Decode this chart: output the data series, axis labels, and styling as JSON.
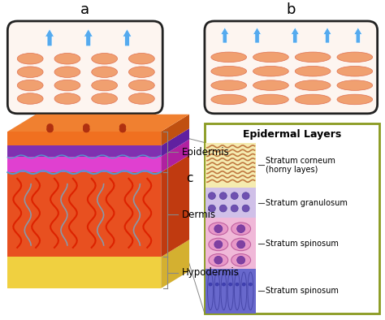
{
  "title_a": "a",
  "title_b": "b",
  "title_c": "c",
  "epidermal_title": "Epidermal Layers",
  "labels_3d": [
    "Epidermis",
    "Dermis",
    "Hypodermis"
  ],
  "epidermal_layers": [
    {
      "name": "Stratum corneum\n(horny layes)",
      "color": "#e8c890"
    },
    {
      "name": "Stratum granulosum",
      "color": "#c8a0d8"
    },
    {
      "name": "Stratum spinosum",
      "color": "#e898c8"
    },
    {
      "name": "Stratum spinosum",
      "color": "#7070cc"
    }
  ],
  "bg_color": "#ffffff",
  "cell_color": "#f0a070",
  "cell_outline": "#e07050",
  "arrow_color": "#55aaee",
  "skin_top_orange": "#f07020",
  "skin_top_face": "#f08030",
  "skin_purple_thin": "#8030b0",
  "skin_magenta": "#e040d0",
  "skin_dermis": "#e85020",
  "skin_hypodermis": "#f0d040",
  "skin_side": "#c04010",
  "dot_color": "#b03010",
  "dermis_vessel_red": "#dd2200",
  "dermis_vessel_gray": "#8899aa",
  "bracket_color": "#888888",
  "ep_border_color": "#8a9a20",
  "sc_bg": "#f5ebb0",
  "sc_line_color": "#c07840",
  "sg_bg": "#d0c0e8",
  "sg_dot_color": "#7050b0",
  "ss_bg": "#f0b8d8",
  "ss_cell_fill": "#e898c8",
  "ss_cell_outline": "#c060a0",
  "ss_nucleus_color": "#8040a0",
  "bl_bg": "#6868cc",
  "bl_cell_outline": "#4848aa"
}
